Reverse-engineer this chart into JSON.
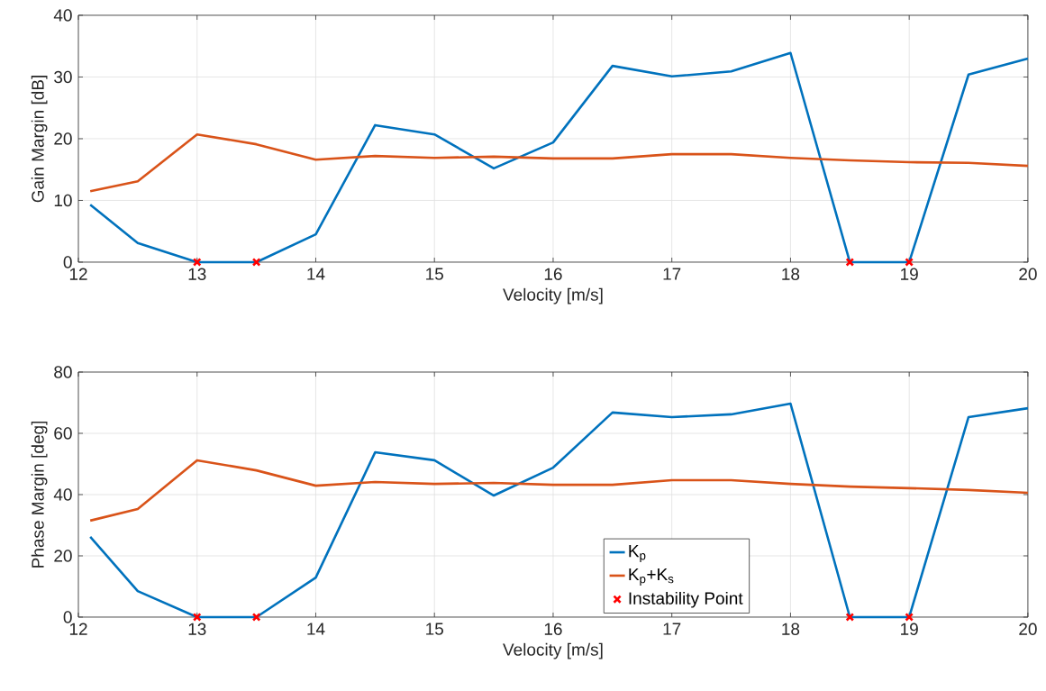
{
  "chart_data": [
    {
      "type": "line",
      "xlabel": "Velocity [m/s]",
      "ylabel": "Gain Margin [dB]",
      "xlim": [
        12,
        20
      ],
      "ylim": [
        0,
        40
      ],
      "xticks": [
        12,
        13,
        14,
        15,
        16,
        17,
        18,
        19,
        20
      ],
      "yticks": [
        0,
        10,
        20,
        30,
        40
      ],
      "grid": true,
      "legend": false,
      "x": [
        12.1,
        12.5,
        13,
        13.5,
        14,
        14.5,
        15,
        15.5,
        16,
        16.5,
        17,
        17.5,
        18,
        18.5,
        19,
        19.5,
        20
      ],
      "series": [
        {
          "color": "#0072bd",
          "values": [
            9.3,
            3.1,
            0,
            0,
            4.5,
            22.2,
            20.7,
            15.2,
            19.4,
            31.8,
            30.1,
            30.9,
            33.9,
            0,
            0,
            30.4,
            33.0
          ]
        },
        {
          "color": "#d95319",
          "values": [
            11.5,
            13.1,
            20.7,
            19.1,
            16.6,
            17.2,
            16.9,
            17.1,
            16.8,
            16.8,
            17.5,
            17.5,
            16.9,
            16.5,
            16.2,
            16.1,
            15.6
          ]
        },
        {
          "type": "scatter",
          "marker": "cross",
          "color": "#ff0000",
          "x": [
            13,
            13.5,
            18.5,
            19
          ],
          "values": [
            0,
            0,
            0,
            0
          ]
        }
      ]
    },
    {
      "type": "line",
      "xlabel": "Velocity [m/s]",
      "ylabel": "Phase Margin [deg]",
      "xlim": [
        12,
        20
      ],
      "ylim": [
        0,
        80
      ],
      "xticks": [
        12,
        13,
        14,
        15,
        16,
        17,
        18,
        19,
        20
      ],
      "yticks": [
        0,
        20,
        40,
        60,
        80
      ],
      "grid": true,
      "legend": "bottom",
      "x": [
        12.1,
        12.5,
        13,
        13.5,
        14,
        14.5,
        15,
        15.5,
        16,
        16.5,
        17,
        17.5,
        18,
        18.5,
        19,
        19.5,
        20
      ],
      "series": [
        {
          "name": "K$_{p}$",
          "color": "#0072bd",
          "values": [
            26.2,
            8.5,
            0,
            0,
            12.9,
            53.8,
            51.2,
            39.7,
            48.8,
            66.8,
            65.3,
            66.2,
            69.7,
            0,
            0,
            65.3,
            68.2
          ]
        },
        {
          "name": "K$_{p}$+K$_{s}$",
          "color": "#d95319",
          "values": [
            31.5,
            35.3,
            51.2,
            47.9,
            42.9,
            44.1,
            43.5,
            43.8,
            43.2,
            43.2,
            44.7,
            44.7,
            43.5,
            42.6,
            42.1,
            41.5,
            40.6
          ]
        },
        {
          "name": "Instability Point",
          "type": "scatter",
          "marker": "cross",
          "color": "#ff0000",
          "x": [
            13,
            13.5,
            18.5,
            19
          ],
          "values": [
            0,
            0,
            0,
            0
          ]
        }
      ]
    }
  ]
}
